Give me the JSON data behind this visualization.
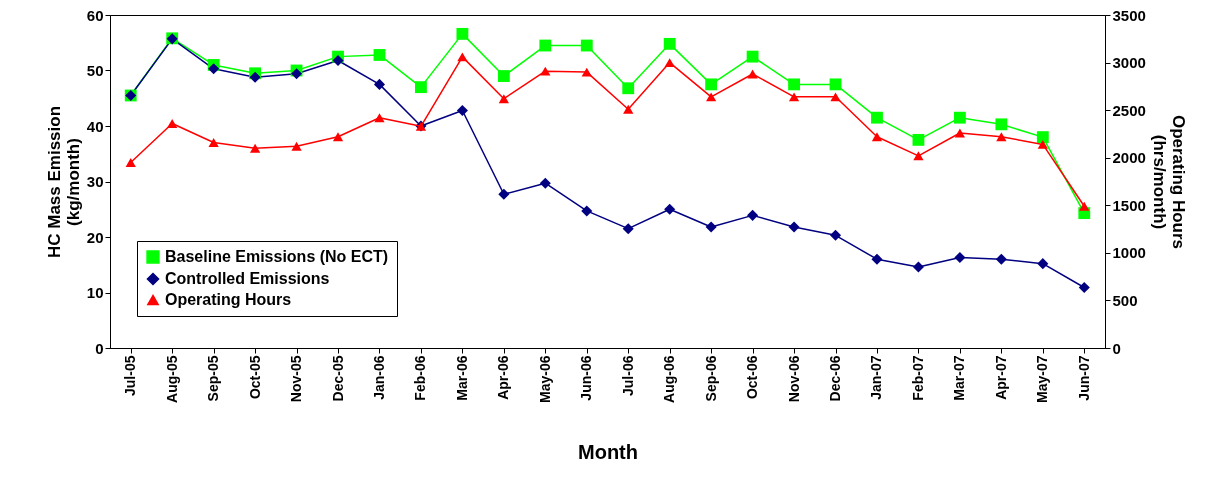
{
  "chart_data": {
    "type": "line",
    "xlabel": "Month",
    "ylabel": "HC Mass Emission (kg/month)",
    "y2label": "Operating Hours (hrs/month)",
    "categories": [
      "Jul-05",
      "Aug-05",
      "Sep-05",
      "Oct-05",
      "Nov-05",
      "Dec-05",
      "Jan-06",
      "Feb-06",
      "Mar-06",
      "Apr-06",
      "May-06",
      "Jun-06",
      "Jul-06",
      "Aug-06",
      "Sep-06",
      "Oct-06",
      "Nov-06",
      "Dec-06",
      "Jan-07",
      "Feb-07",
      "Mar-07",
      "Apr-07",
      "May-07",
      "Jun-07"
    ],
    "series": [
      {
        "name": "Baseline Emissions (No ECT)",
        "color": "#00ff00",
        "marker": "square",
        "values": [
          45.5,
          55.8,
          51,
          49.5,
          50,
          52.5,
          52.8,
          47,
          56.6,
          49,
          54.5,
          54.5,
          46.8,
          54.8,
          47.5,
          52.5,
          47.5,
          47.5,
          41.5,
          37.5,
          41.5,
          40.3,
          38,
          24.3
        ]
      },
      {
        "name": "Controlled Emissions",
        "color": "#000080",
        "marker": "diamond",
        "values": [
          45.5,
          55.7,
          50.3,
          48.8,
          49.4,
          51.8,
          47.5,
          40,
          42.8,
          27.7,
          29.7,
          24.7,
          21.5,
          25,
          21.8,
          23.9,
          21.8,
          20.3,
          16,
          14.6,
          16.3,
          16,
          15.2,
          10.9
        ]
      },
      {
        "name": "Operating Hours",
        "color": "#ff0000",
        "marker": "triangle",
        "axis": "y2",
        "values": [
          1950,
          2360,
          2160,
          2100,
          2120,
          2220,
          2420,
          2330,
          3060,
          2620,
          2910,
          2900,
          2510,
          3000,
          2640,
          2880,
          2640,
          2640,
          2220,
          2020,
          2260,
          2220,
          2140,
          1490
        ]
      }
    ],
    "ylim": [
      0,
      60
    ],
    "yticks": [
      0,
      10,
      20,
      30,
      40,
      50,
      60
    ],
    "y2lim": [
      0,
      3500
    ],
    "y2ticks": [
      0,
      500,
      1000,
      1500,
      2000,
      2500,
      3000,
      3500
    ],
    "grid": false,
    "legend": "bottom left"
  }
}
